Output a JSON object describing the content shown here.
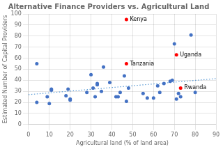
{
  "chart_data": {
    "type": "scatter",
    "title": "Alternative Finance Providers vs. Agricultural Land",
    "xlabel": "Agricultural land (% of land area)",
    "ylabel": "Estimated Number of Capital Providers",
    "xlim": [
      0,
      90
    ],
    "ylim": [
      0,
      100
    ],
    "xticks": [
      0,
      10,
      20,
      30,
      40,
      50,
      60,
      70,
      80,
      90
    ],
    "yticks": [
      0,
      10,
      20,
      30,
      40,
      50,
      60,
      70,
      80,
      90,
      100
    ],
    "grid": true,
    "series": [
      {
        "type": "line",
        "line_style": "dotted",
        "color": "#5b9bd5",
        "x": [
          0,
          90
        ],
        "values": [
          27.0,
          41.5
        ]
      },
      {
        "type": "scatter",
        "color": "#4472c4",
        "x": [
          4,
          4,
          9,
          10,
          11,
          11,
          18,
          19,
          20,
          20,
          28,
          30,
          31,
          32,
          33,
          33,
          35,
          36,
          39,
          42,
          43,
          44,
          46,
          47,
          48,
          55,
          57,
          60,
          62,
          63,
          65,
          68,
          69,
          70,
          71,
          72,
          73,
          78,
          80
        ],
        "values": [
          20,
          55,
          25,
          19,
          31,
          32,
          26,
          32,
          23,
          22,
          29,
          45,
          33,
          25,
          37,
          36,
          30,
          52,
          38,
          25,
          25,
          29,
          44,
          21,
          33,
          28,
          24,
          24,
          35,
          29,
          37,
          39,
          40,
          73,
          23,
          28,
          25,
          81,
          29
        ]
      },
      {
        "type": "scatter",
        "color": "#ff0000",
        "x": [
          47,
          71,
          47,
          73
        ],
        "values": [
          95,
          63,
          55,
          33
        ],
        "labels": [
          "Kenya",
          "Uganda",
          "Tanzania",
          "Rwanda"
        ]
      }
    ]
  }
}
